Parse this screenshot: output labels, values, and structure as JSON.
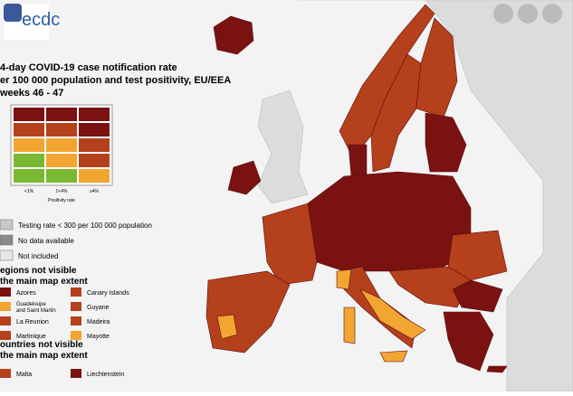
{
  "logo": "ecdc",
  "title": [
    "4-day COVID-19 case notification rate",
    "er 100 000 population and test positivity, EU/EEA",
    "weeks 46 - 47"
  ],
  "legend_grid": {
    "rows": [
      [
        "#7a1212",
        "#7a1212",
        "#7a1212"
      ],
      [
        "#b5401c",
        "#b5401c",
        "#7a1212"
      ],
      [
        "#f2a531",
        "#f2a531",
        "#b5401c"
      ],
      [
        "#79b833",
        "#f2a531",
        "#b5401c"
      ],
      [
        "#79b833",
        "#79b833",
        "#f2a531"
      ]
    ],
    "x_labels": [
      "<1%",
      "1<4%",
      "≥4%"
    ],
    "x_title": "Positivity rate"
  },
  "status_legend": [
    {
      "name": "Testing rate < 300 per 100 000 population",
      "color": "#c8c8c8"
    },
    {
      "name": "No data available",
      "color": "#8a8a8a"
    },
    {
      "name": "Not included",
      "color": "#e6e6e6"
    }
  ],
  "regions_heading": [
    "egions not visible",
    "the main map extent"
  ],
  "regions": [
    {
      "name": "Azores",
      "color": "#7a1212"
    },
    {
      "name": "Canary Islands",
      "color": "#b5401c"
    },
    {
      "name": "Guadeloupe and Saint Martin",
      "color": "#f2a531"
    },
    {
      "name": "Guyane",
      "color": "#b5401c"
    },
    {
      "name": "La Reunion",
      "color": "#b5401c"
    },
    {
      "name": "Madeira",
      "color": "#b5401c"
    },
    {
      "name": "Martinique",
      "color": "#b5401c"
    },
    {
      "name": "Mayotte",
      "color": "#f2a531"
    }
  ],
  "countries_heading": [
    "ountries not visible",
    "the main map extent"
  ],
  "countries": [
    {
      "name": "Malta",
      "color": "#b5401c"
    },
    {
      "name": "Liechtenstein",
      "color": "#7a1212"
    }
  ]
}
